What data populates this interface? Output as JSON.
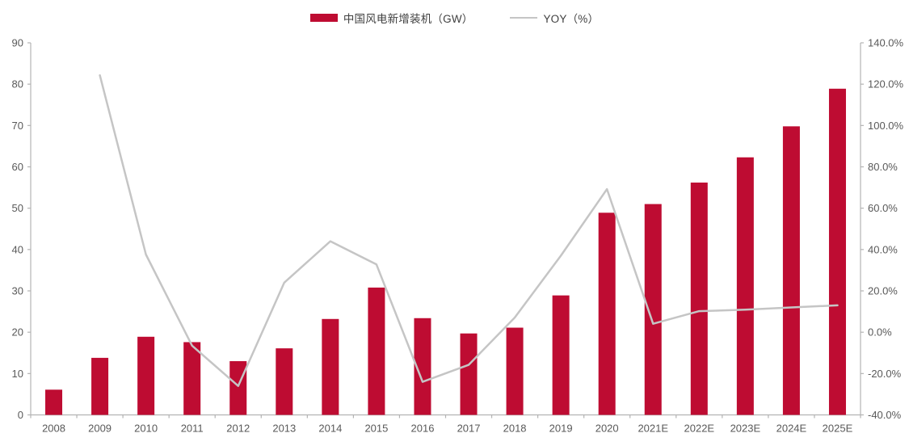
{
  "legend": {
    "series1": "中国风电新增装机（GW）",
    "series2": "YOY（%）"
  },
  "colors": {
    "bar": "#be0c32",
    "line": "#c5c5c5",
    "axis": "#b3b3b3",
    "tick_label": "#595959",
    "legend_text": "#3f3f3f"
  },
  "chart_data": {
    "type": "bar",
    "title": "",
    "xlabel": "",
    "ylabel": "",
    "grid": false,
    "legend_position": "top",
    "categories": [
      "2008",
      "2009",
      "2010",
      "2011",
      "2012",
      "2013",
      "2014",
      "2015",
      "2016",
      "2017",
      "2018",
      "2019",
      "2020",
      "2021E",
      "2022E",
      "2023E",
      "2024E",
      "2025E"
    ],
    "series": [
      {
        "name": "中国风电新增装机（GW）",
        "type": "bar",
        "axis": "left",
        "unit": "GW",
        "values": [
          6.1,
          13.8,
          18.9,
          17.6,
          13.0,
          16.1,
          23.2,
          30.8,
          23.4,
          19.7,
          21.1,
          28.9,
          48.9,
          51.0,
          56.2,
          62.3,
          69.8,
          78.9
        ]
      },
      {
        "name": "YOY（%）",
        "type": "line",
        "axis": "right",
        "unit": "%",
        "values": [
          null,
          124.3,
          37.6,
          -6.5,
          -26.0,
          24.0,
          44.0,
          32.8,
          -24.0,
          -15.8,
          7.1,
          37.0,
          69.2,
          4.1,
          10.2,
          10.9,
          12.0,
          13.0
        ]
      }
    ],
    "left_axis": {
      "min": 0,
      "max": 90,
      "step": 10,
      "tick_labels": [
        "0",
        "10",
        "20",
        "30",
        "40",
        "50",
        "60",
        "70",
        "80",
        "90"
      ]
    },
    "right_axis": {
      "min": -40,
      "max": 140,
      "step": 20,
      "tick_labels": [
        "-40.0%",
        "-20.0%",
        "0.0%",
        "20.0%",
        "40.0%",
        "60.0%",
        "80.0%",
        "100.0%",
        "120.0%",
        "140.0%"
      ]
    }
  }
}
